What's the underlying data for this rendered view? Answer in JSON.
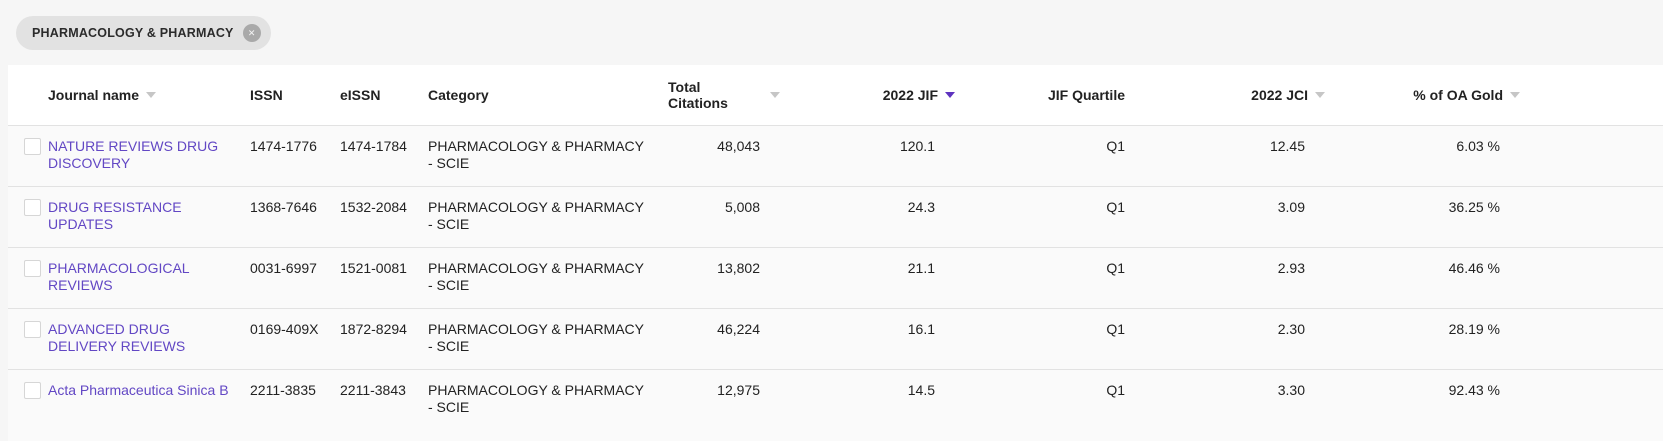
{
  "filter_chip": {
    "label": "PHARMACOLOGY & PHARMACY"
  },
  "table": {
    "columns": [
      {
        "label": "Journal name",
        "sort": "inactive"
      },
      {
        "label": "ISSN",
        "sort": "none"
      },
      {
        "label": "eISSN",
        "sort": "none"
      },
      {
        "label": "Category",
        "sort": "none"
      },
      {
        "label": "Total Citations",
        "sort": "inactive"
      },
      {
        "label": "2022 JIF",
        "sort": "active-descending"
      },
      {
        "label": "JIF Quartile",
        "sort": "none"
      },
      {
        "label": "2022 JCI",
        "sort": "inactive"
      },
      {
        "label": "% of OA Gold",
        "sort": "inactive"
      }
    ],
    "sort_state": {
      "active_column": "2022 JIF",
      "direction": "descending"
    },
    "rows": [
      {
        "journal": "NATURE REVIEWS DRUG DISCOVERY",
        "issn": "1474-1776",
        "eissn": "1474-1784",
        "category": "PHARMACOLOGY & PHARMACY - SCIE",
        "total_citations": "48,043",
        "jif": "120.1",
        "jif_quartile": "Q1",
        "jci": "12.45",
        "oa_gold": "6.03 %"
      },
      {
        "journal": "DRUG RESISTANCE UPDATES",
        "issn": "1368-7646",
        "eissn": "1532-2084",
        "category": "PHARMACOLOGY & PHARMACY - SCIE",
        "total_citations": "5,008",
        "jif": "24.3",
        "jif_quartile": "Q1",
        "jci": "3.09",
        "oa_gold": "36.25 %"
      },
      {
        "journal": "PHARMACOLOGICAL REVIEWS",
        "issn": "0031-6997",
        "eissn": "1521-0081",
        "category": "PHARMACOLOGY & PHARMACY - SCIE",
        "total_citations": "13,802",
        "jif": "21.1",
        "jif_quartile": "Q1",
        "jci": "2.93",
        "oa_gold": "46.46 %"
      },
      {
        "journal": "ADVANCED DRUG DELIVERY REVIEWS",
        "issn": "0169-409X",
        "eissn": "1872-8294",
        "category": "PHARMACOLOGY & PHARMACY - SCIE",
        "total_citations": "46,224",
        "jif": "16.1",
        "jif_quartile": "Q1",
        "jci": "2.30",
        "oa_gold": "28.19 %"
      },
      {
        "journal": "Acta Pharmaceutica Sinica B",
        "issn": "2211-3835",
        "eissn": "2211-3843",
        "category": "PHARMACOLOGY & PHARMACY - SCIE",
        "total_citations": "12,975",
        "jif": "14.5",
        "jif_quartile": "Q1",
        "jci": "3.30",
        "oa_gold": "92.43 %"
      }
    ]
  },
  "icons": {
    "chip_close": "close-icon",
    "sort": "sort-descending-triangle-icon"
  },
  "colors": {
    "accent_purple": "#5e33bf",
    "link_purple": "#6247c4",
    "chip_bg": "#e2e2e2",
    "page_bg": "#f6f6f6",
    "row_bg": "#fafafa",
    "divider": "#e2e2e2"
  }
}
